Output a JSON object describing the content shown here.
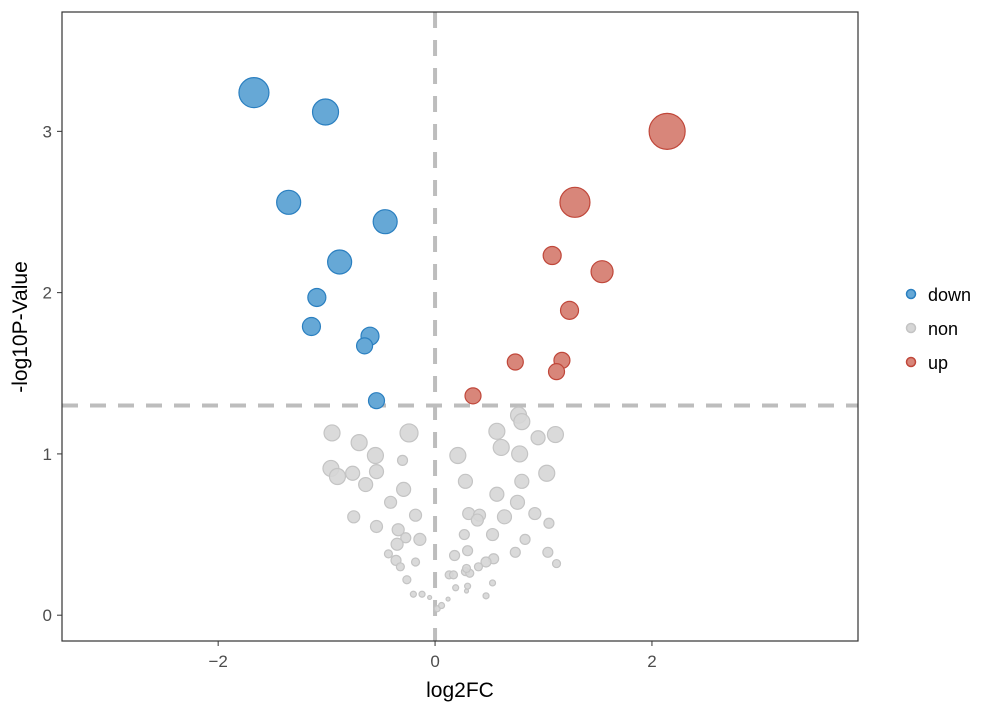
{
  "chart_data": {
    "type": "scatter",
    "title": "",
    "xlabel": "log2FC",
    "ylabel": "-log10P-Value",
    "xlim": [
      -3.44,
      3.9
    ],
    "ylim": [
      -0.16,
      3.74
    ],
    "xticks": [
      -2,
      0,
      2
    ],
    "xtick_labels": [
      "−2",
      "0",
      "2"
    ],
    "yticks": [
      0,
      1,
      2,
      3
    ],
    "ytick_labels": [
      "0",
      "1",
      "2",
      "3"
    ],
    "grid": false,
    "thresholds": {
      "x": 0,
      "y": 1.3
    },
    "legend": {
      "placement": "right",
      "entries": [
        "down",
        "non",
        "up"
      ]
    },
    "colors": {
      "down": {
        "fill": "#66a8d6",
        "stroke": "#2a7fc0"
      },
      "non": {
        "fill": "#d6d6d6",
        "stroke": "#c4c4c4"
      },
      "up": {
        "fill": "#d8867a",
        "stroke": "#c0473a"
      }
    },
    "series": [
      {
        "name": "down",
        "points": [
          [
            -1.67,
            3.24,
            15
          ],
          [
            -1.01,
            3.12,
            13
          ],
          [
            -1.35,
            2.56,
            12
          ],
          [
            -0.46,
            2.44,
            12
          ],
          [
            -0.88,
            2.19,
            12
          ],
          [
            -1.09,
            1.97,
            9
          ],
          [
            -1.14,
            1.79,
            9
          ],
          [
            -0.6,
            1.73,
            9
          ],
          [
            -0.65,
            1.67,
            8
          ],
          [
            -0.54,
            1.33,
            8
          ]
        ]
      },
      {
        "name": "non",
        "points": [
          [
            -0.95,
            1.13,
            8
          ],
          [
            -0.7,
            1.07,
            8
          ],
          [
            -0.24,
            1.13,
            9
          ],
          [
            -0.55,
            0.99,
            8
          ],
          [
            -0.3,
            0.96,
            5
          ],
          [
            -0.96,
            0.91,
            8
          ],
          [
            -0.9,
            0.86,
            8
          ],
          [
            -0.76,
            0.88,
            7
          ],
          [
            -0.54,
            0.89,
            7
          ],
          [
            -0.64,
            0.81,
            7
          ],
          [
            -0.29,
            0.78,
            7
          ],
          [
            -0.41,
            0.7,
            6
          ],
          [
            -0.75,
            0.61,
            6
          ],
          [
            -0.18,
            0.62,
            6
          ],
          [
            -0.54,
            0.55,
            6
          ],
          [
            -0.34,
            0.53,
            6
          ],
          [
            -0.27,
            0.48,
            5
          ],
          [
            -0.35,
            0.44,
            6
          ],
          [
            -0.14,
            0.47,
            6
          ],
          [
            -0.43,
            0.38,
            4
          ],
          [
            -0.36,
            0.34,
            5
          ],
          [
            -0.18,
            0.33,
            4
          ],
          [
            -0.32,
            0.3,
            4
          ],
          [
            -0.26,
            0.22,
            4
          ],
          [
            -0.2,
            0.13,
            3
          ],
          [
            -0.12,
            0.13,
            3
          ],
          [
            -0.05,
            0.11,
            2
          ],
          [
            0.02,
            0.04,
            3
          ],
          [
            0.06,
            0.06,
            3
          ],
          [
            0.12,
            0.1,
            2
          ],
          [
            0.77,
            1.24,
            8
          ],
          [
            0.8,
            1.2,
            8
          ],
          [
            0.57,
            1.14,
            8
          ],
          [
            1.11,
            1.12,
            8
          ],
          [
            0.95,
            1.1,
            7
          ],
          [
            0.61,
            1.04,
            8
          ],
          [
            0.78,
            1.0,
            8
          ],
          [
            0.21,
            0.99,
            8
          ],
          [
            1.03,
            0.88,
            8
          ],
          [
            0.28,
            0.83,
            7
          ],
          [
            0.8,
            0.83,
            7
          ],
          [
            0.57,
            0.75,
            7
          ],
          [
            0.76,
            0.7,
            7
          ],
          [
            0.31,
            0.63,
            6
          ],
          [
            0.41,
            0.62,
            6
          ],
          [
            0.39,
            0.59,
            6
          ],
          [
            0.64,
            0.61,
            7
          ],
          [
            0.92,
            0.63,
            6
          ],
          [
            1.05,
            0.57,
            5
          ],
          [
            0.53,
            0.5,
            6
          ],
          [
            0.27,
            0.5,
            5
          ],
          [
            0.83,
            0.47,
            5
          ],
          [
            0.3,
            0.4,
            5
          ],
          [
            0.74,
            0.39,
            5
          ],
          [
            1.04,
            0.39,
            5
          ],
          [
            0.54,
            0.35,
            5
          ],
          [
            0.47,
            0.33,
            5
          ],
          [
            0.18,
            0.37,
            5
          ],
          [
            0.4,
            0.3,
            4
          ],
          [
            1.12,
            0.32,
            4
          ],
          [
            0.13,
            0.25,
            4
          ],
          [
            0.17,
            0.25,
            4
          ],
          [
            0.28,
            0.27,
            4
          ],
          [
            0.32,
            0.26,
            4
          ],
          [
            0.29,
            0.29,
            4
          ],
          [
            0.53,
            0.2,
            3
          ],
          [
            0.19,
            0.17,
            3
          ],
          [
            0.3,
            0.18,
            3
          ],
          [
            0.29,
            0.15,
            2
          ],
          [
            0.47,
            0.12,
            3
          ]
        ]
      },
      {
        "name": "up",
        "points": [
          [
            2.14,
            3.0,
            18
          ],
          [
            1.29,
            2.56,
            15
          ],
          [
            1.08,
            2.23,
            9
          ],
          [
            1.54,
            2.13,
            11
          ],
          [
            1.24,
            1.89,
            9
          ],
          [
            0.74,
            1.57,
            8
          ],
          [
            1.17,
            1.58,
            8
          ],
          [
            1.12,
            1.51,
            8
          ],
          [
            0.35,
            1.36,
            8
          ]
        ]
      }
    ]
  }
}
